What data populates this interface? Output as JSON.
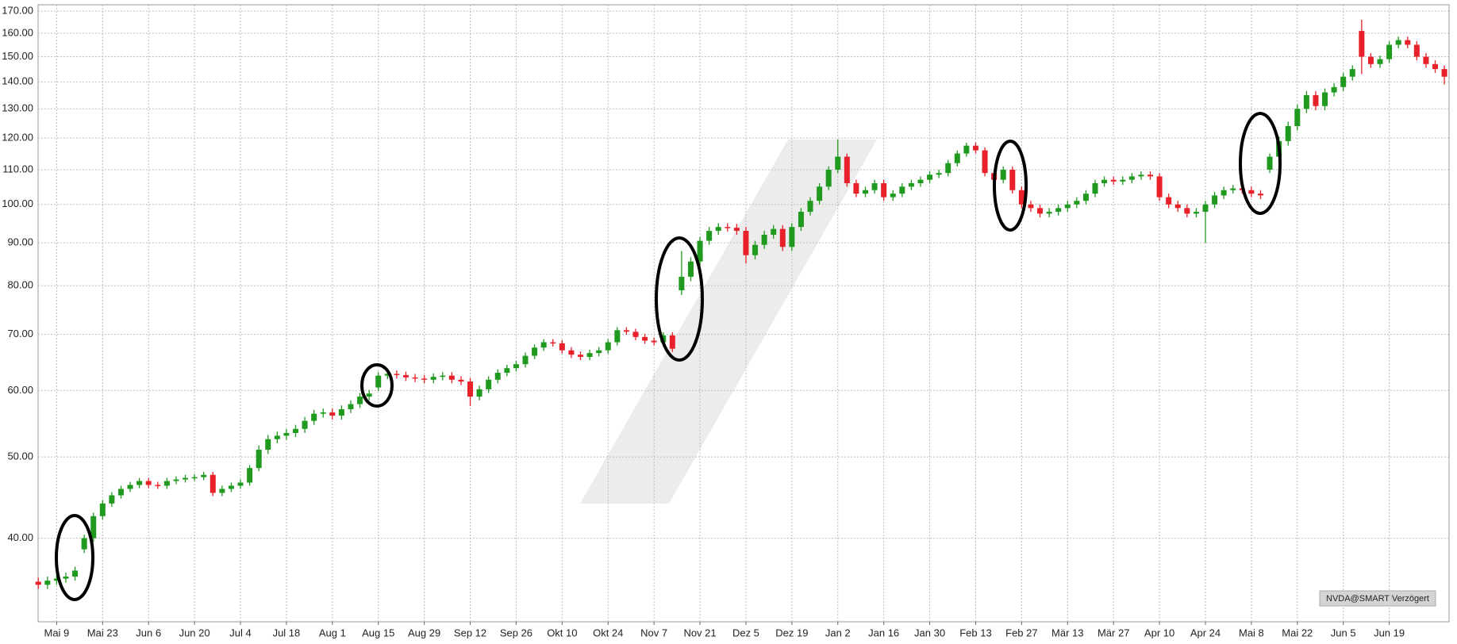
{
  "chart_data": {
    "type": "candlestick",
    "source": "NVDA@SMART Verzögert",
    "log_scale": true,
    "grid": true,
    "up_color": "#1f9a1f",
    "down_color": "#e8202a",
    "ylim": [
      31.8,
      173
    ],
    "yticks": [
      {
        "value": 40,
        "label": "40.00"
      },
      {
        "value": 50,
        "label": "50.00"
      },
      {
        "value": 60,
        "label": "60.00"
      },
      {
        "value": 70,
        "label": "70.00"
      },
      {
        "value": 80,
        "label": "80.00"
      },
      {
        "value": 90,
        "label": "90.00"
      },
      {
        "value": 100,
        "label": "100.00"
      },
      {
        "value": 110,
        "label": "110.00"
      },
      {
        "value": 120,
        "label": "120.00"
      },
      {
        "value": 130,
        "label": "130.00"
      },
      {
        "value": 140,
        "label": "140.00"
      },
      {
        "value": 150,
        "label": "150.00"
      },
      {
        "value": 160,
        "label": "160.00"
      },
      {
        "value": 170,
        "label": "170.00"
      }
    ],
    "categories": [
      null,
      null,
      "Mai 9",
      null,
      null,
      null,
      null,
      "Mai 23",
      null,
      null,
      null,
      null,
      "Jun 6",
      null,
      null,
      null,
      null,
      "Jun 20",
      null,
      null,
      null,
      null,
      "Jul 4",
      null,
      null,
      null,
      null,
      "Jul 18",
      null,
      null,
      null,
      null,
      "Aug 1",
      null,
      null,
      null,
      null,
      "Aug 15",
      null,
      null,
      null,
      null,
      "Aug 29",
      null,
      null,
      null,
      null,
      "Sep 12",
      null,
      null,
      null,
      null,
      "Sep 26",
      null,
      null,
      null,
      null,
      "Okt 10",
      null,
      null,
      null,
      null,
      "Okt 24",
      null,
      null,
      null,
      null,
      "Nov 7",
      null,
      null,
      null,
      null,
      "Nov 21",
      null,
      null,
      null,
      null,
      "Dez 5",
      null,
      null,
      null,
      null,
      "Dez 19",
      null,
      null,
      null,
      null,
      "Jan 2",
      null,
      null,
      null,
      null,
      "Jan 16",
      null,
      null,
      null,
      null,
      "Jan 30",
      null,
      null,
      null,
      null,
      "Feb 13",
      null,
      null,
      null,
      null,
      "Feb 27",
      null,
      null,
      null,
      null,
      "Mär 13",
      null,
      null,
      null,
      null,
      "Mär 27",
      null,
      null,
      null,
      null,
      "Apr 10",
      null,
      null,
      null,
      null,
      "Apr 24",
      null,
      null,
      null,
      null,
      "Mai 8",
      null,
      null,
      null,
      null,
      "Mai 22",
      null,
      null,
      null,
      null,
      "Jun 5",
      null,
      null,
      null,
      null,
      "Jun 19",
      null,
      null,
      null,
      null,
      null,
      null
    ],
    "open": [
      35.5,
      35.2,
      35.6,
      35.8,
      36.0,
      38.8,
      40.0,
      42.5,
      44.0,
      45.0,
      45.8,
      46.3,
      46.8,
      46.3,
      46.2,
      46.8,
      47.0,
      47.2,
      47.3,
      47.6,
      45.3,
      45.8,
      46.2,
      46.6,
      48.5,
      51.0,
      52.5,
      53.0,
      53.4,
      54.0,
      55.2,
      56.3,
      56.5,
      56.0,
      57.0,
      57.8,
      59.0,
      60.5,
      62.5,
      62.8,
      62.6,
      62.2,
      62.0,
      61.8,
      62.3,
      62.5,
      61.8,
      61.5,
      59.0,
      60.2,
      61.8,
      63.0,
      63.8,
      64.5,
      66.0,
      67.5,
      68.5,
      68.3,
      67.0,
      66.2,
      65.8,
      66.5,
      67.0,
      68.5,
      70.8,
      70.5,
      69.5,
      68.8,
      68.5,
      69.8,
      79.0,
      82.0,
      85.5,
      90.5,
      93.0,
      94.0,
      93.8,
      93.0,
      87.0,
      89.5,
      92.0,
      93.5,
      89.0,
      94.0,
      98.0,
      101.0,
      105.0,
      110.0,
      114.0,
      106.0,
      103.0,
      104.0,
      106.0,
      102.0,
      103.0,
      105.0,
      106.0,
      107.0,
      108.5,
      109.0,
      112.0,
      115.0,
      117.5,
      116.0,
      109.0,
      107.0,
      110.0,
      104.0,
      100.0,
      99.0,
      97.5,
      98.0,
      99.0,
      100.0,
      101.0,
      103.0,
      106.0,
      107.0,
      106.5,
      107.0,
      108.0,
      108.5,
      108.0,
      102.0,
      100.0,
      99.0,
      97.5,
      98.0,
      100.0,
      102.5,
      104.0,
      104.5,
      104.0,
      103.0,
      110.0,
      114.0,
      119.0,
      124.0,
      130.0,
      135.0,
      131.0,
      136.0,
      138.0,
      142.0,
      161.0,
      150.0,
      147.0,
      149.0,
      155.0,
      157.0,
      155.0,
      150.0,
      147.0,
      145.0
    ],
    "high": [
      35.9,
      36.0,
      36.2,
      36.4,
      37.0,
      40.4,
      42.9,
      44.4,
      45.4,
      46.2,
      46.7,
      47.2,
      47.2,
      46.7,
      47.2,
      47.4,
      47.6,
      47.7,
      48.0,
      48.0,
      46.2,
      46.6,
      47.0,
      48.9,
      51.6,
      53.1,
      53.6,
      54.0,
      54.6,
      55.8,
      56.9,
      57.1,
      57.1,
      57.6,
      58.4,
      59.6,
      60.1,
      63.1,
      63.4,
      63.4,
      63.2,
      62.8,
      62.6,
      62.9,
      63.1,
      63.1,
      62.4,
      62.1,
      60.8,
      62.4,
      63.6,
      64.4,
      65.1,
      66.6,
      68.1,
      69.1,
      69.1,
      68.9,
      67.6,
      66.8,
      67.1,
      67.6,
      69.1,
      71.4,
      71.4,
      71.1,
      70.1,
      69.4,
      70.4,
      70.4,
      88.0,
      86.5,
      91.5,
      94.0,
      95.0,
      95.0,
      94.8,
      94.0,
      90.5,
      93.0,
      94.5,
      94.5,
      95.0,
      99.0,
      102.0,
      106.0,
      111.0,
      119.5,
      115.0,
      107.0,
      105.0,
      107.0,
      107.0,
      104.0,
      106.0,
      107.0,
      108.0,
      109.5,
      110.0,
      113.0,
      116.0,
      118.5,
      118.5,
      117.0,
      110.0,
      111.0,
      111.0,
      105.0,
      101.0,
      100.0,
      99.0,
      100.0,
      101.0,
      102.0,
      104.0,
      107.0,
      108.0,
      108.0,
      108.0,
      109.0,
      109.5,
      109.5,
      109.0,
      103.0,
      101.0,
      100.0,
      99.0,
      101.0,
      103.5,
      105.0,
      105.5,
      105.5,
      105.0,
      104.0,
      115.0,
      120.5,
      125.5,
      131.5,
      136.5,
      136.5,
      137.5,
      139.5,
      143.5,
      146.5,
      166.0,
      151.5,
      150.5,
      156.5,
      158.5,
      158.5,
      156.5,
      151.5,
      148.5,
      146.5
    ],
    "low": [
      34.8,
      34.8,
      35.2,
      35.4,
      35.6,
      38.4,
      39.6,
      42.1,
      43.6,
      44.6,
      45.4,
      45.9,
      45.9,
      45.8,
      45.8,
      46.4,
      46.6,
      46.8,
      46.9,
      44.9,
      44.9,
      45.4,
      45.8,
      46.2,
      48.1,
      50.4,
      51.9,
      52.4,
      52.8,
      53.4,
      54.6,
      55.7,
      55.4,
      55.4,
      56.4,
      57.2,
      58.4,
      59.9,
      61.9,
      62.0,
      61.6,
      61.4,
      61.2,
      61.2,
      61.7,
      61.2,
      60.9,
      57.5,
      58.4,
      59.6,
      61.2,
      62.4,
      63.2,
      63.9,
      65.4,
      66.9,
      67.7,
      66.4,
      65.6,
      65.2,
      65.2,
      65.9,
      66.4,
      67.9,
      69.9,
      68.9,
      68.2,
      67.9,
      67.9,
      66.7,
      78.0,
      81.0,
      84.5,
      89.5,
      92.0,
      92.8,
      92.0,
      85.0,
      86.0,
      88.5,
      91.0,
      88.0,
      88.0,
      93.0,
      97.0,
      100.0,
      104.0,
      109.0,
      105.0,
      102.0,
      102.0,
      103.0,
      101.0,
      101.0,
      102.0,
      104.0,
      105.0,
      106.0,
      107.5,
      108.0,
      111.0,
      114.0,
      115.0,
      108.0,
      106.0,
      106.0,
      103.0,
      99.0,
      98.0,
      96.5,
      96.5,
      97.0,
      98.0,
      99.0,
      100.0,
      102.0,
      105.0,
      105.5,
      105.5,
      106.0,
      107.0,
      107.0,
      101.0,
      99.0,
      98.0,
      96.5,
      96.5,
      90.0,
      99.0,
      101.5,
      103.0,
      103.0,
      102.0,
      101.5,
      109.0,
      113.0,
      117.5,
      122.5,
      128.5,
      129.5,
      129.5,
      134.5,
      136.5,
      140.5,
      143.0,
      145.5,
      145.5,
      147.5,
      153.5,
      153.5,
      148.5,
      145.5,
      143.5,
      139.0
    ],
    "close": [
      35.2,
      35.6,
      35.8,
      36.0,
      36.6,
      40.0,
      42.5,
      44.0,
      45.0,
      45.8,
      46.3,
      46.8,
      46.3,
      46.2,
      46.8,
      47.0,
      47.2,
      47.3,
      47.6,
      45.3,
      45.8,
      46.2,
      46.6,
      48.5,
      51.0,
      52.5,
      53.0,
      53.4,
      54.0,
      55.2,
      56.3,
      56.5,
      56.0,
      57.0,
      57.8,
      59.0,
      59.5,
      62.5,
      62.8,
      62.6,
      62.2,
      62.0,
      61.8,
      62.3,
      62.5,
      61.8,
      61.5,
      59.0,
      60.2,
      61.8,
      63.0,
      63.8,
      64.5,
      66.0,
      67.5,
      68.5,
      68.3,
      67.0,
      66.2,
      65.8,
      66.5,
      67.0,
      68.5,
      70.8,
      70.5,
      69.5,
      68.8,
      68.5,
      69.8,
      67.3,
      82.0,
      85.5,
      90.5,
      93.0,
      94.0,
      93.8,
      93.0,
      87.0,
      89.5,
      92.0,
      93.5,
      89.0,
      94.0,
      98.0,
      101.0,
      105.0,
      110.0,
      114.0,
      106.0,
      103.0,
      104.0,
      106.0,
      102.0,
      103.0,
      105.0,
      106.0,
      107.0,
      108.5,
      109.0,
      112.0,
      115.0,
      117.5,
      116.0,
      109.0,
      107.0,
      110.0,
      104.0,
      100.0,
      99.0,
      97.5,
      98.0,
      99.0,
      100.0,
      101.0,
      103.0,
      106.0,
      107.0,
      106.5,
      107.0,
      108.0,
      108.5,
      108.0,
      102.0,
      100.0,
      99.0,
      97.5,
      98.0,
      100.0,
      102.5,
      104.0,
      104.5,
      104.0,
      103.0,
      102.5,
      114.0,
      119.0,
      124.0,
      130.0,
      135.0,
      131.0,
      136.0,
      138.0,
      142.0,
      145.0,
      150.0,
      147.0,
      149.0,
      155.0,
      157.0,
      155.0,
      150.0,
      147.0,
      145.0,
      142.0
    ]
  }
}
